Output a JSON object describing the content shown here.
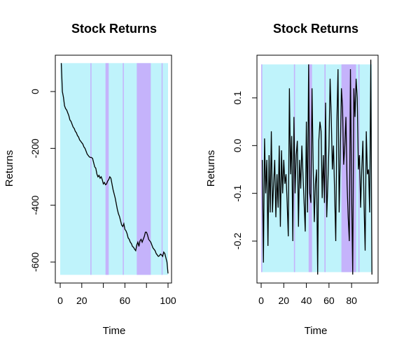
{
  "chart_data": [
    {
      "type": "line",
      "title": "Stock Returns",
      "xlabel": "Time",
      "ylabel": "Returns",
      "xlim": [
        0,
        100
      ],
      "ylim": [
        -650,
        100
      ],
      "xticks": [
        0,
        20,
        40,
        60,
        80,
        100
      ],
      "xtick_labels": [
        "0",
        "20",
        "",
        "60",
        "",
        "100"
      ],
      "yticks": [
        0,
        -200,
        -400,
        -600
      ],
      "ytick_labels": [
        "0",
        "-200",
        "-400",
        "-600"
      ],
      "band_range": [
        -645,
        100
      ],
      "regime_colors": {
        "low": "#bff3fb",
        "high": "#c5b3fb"
      },
      "regime_bands": [
        {
          "x0": 28,
          "x1": 29,
          "regime": "high"
        },
        {
          "x0": 42,
          "x1": 45,
          "regime": "high"
        },
        {
          "x0": 58,
          "x1": 59,
          "regime": "high"
        },
        {
          "x0": 71,
          "x1": 84,
          "regime": "high"
        },
        {
          "x0": 94,
          "x1": 95,
          "regime": "high"
        }
      ],
      "series": [
        {
          "x": [
            1,
            2,
            3,
            4,
            5,
            6,
            7,
            8,
            9,
            10,
            11,
            12,
            13,
            14,
            15,
            16,
            17,
            18,
            19,
            20,
            21,
            22,
            23,
            24,
            25,
            26,
            27,
            28,
            29,
            30,
            31,
            32,
            33,
            34,
            35,
            36,
            37,
            38,
            39,
            40,
            41,
            42,
            43,
            44,
            45,
            46,
            47,
            48,
            49,
            50,
            51,
            52,
            53,
            54,
            55,
            56,
            57,
            58,
            59,
            60,
            61,
            62,
            63,
            64,
            65,
            66,
            67,
            68,
            69,
            70,
            71,
            72,
            73,
            74,
            75,
            76,
            77,
            78,
            79,
            80,
            81,
            82,
            83,
            84,
            85,
            86,
            87,
            88,
            89,
            90,
            91,
            92,
            93,
            94,
            95,
            96,
            97,
            98,
            99,
            100
          ],
          "values": [
            100,
            0,
            -20,
            -50,
            -60,
            -65,
            -75,
            -85,
            -100,
            -105,
            -115,
            -125,
            -130,
            -140,
            -145,
            -155,
            -160,
            -170,
            -175,
            -180,
            -185,
            -195,
            -200,
            -210,
            -220,
            -225,
            -230,
            -232,
            -232,
            -235,
            -250,
            -265,
            -270,
            -290,
            -300,
            -295,
            -305,
            -300,
            -310,
            -325,
            -320,
            -328,
            -325,
            -315,
            -310,
            -300,
            -305,
            -325,
            -345,
            -360,
            -375,
            -395,
            -415,
            -430,
            -440,
            -455,
            -470,
            -475,
            -465,
            -485,
            -490,
            -500,
            -515,
            -520,
            -530,
            -535,
            -545,
            -548,
            -555,
            -560,
            -540,
            -530,
            -545,
            -525,
            -520,
            -530,
            -520,
            -510,
            -495,
            -495,
            -505,
            -520,
            -525,
            -530,
            -540,
            -550,
            -555,
            -560,
            -570,
            -575,
            -580,
            -578,
            -572,
            -575,
            -580,
            -565,
            -570,
            -585,
            -600,
            -640
          ]
        }
      ]
    },
    {
      "type": "line",
      "title": "Stock Returns",
      "xlabel": "Time",
      "ylabel": "Returns",
      "xlim": [
        0,
        98
      ],
      "ylim": [
        -0.28,
        0.18
      ],
      "xticks": [
        0,
        20,
        40,
        60,
        80
      ],
      "xtick_labels": [
        "0",
        "20",
        "40",
        "60",
        "80"
      ],
      "yticks": [
        0.1,
        0.0,
        -0.1,
        -0.2
      ],
      "ytick_labels": [
        "0.1",
        "0.0",
        "-0.1",
        "-0.2"
      ],
      "band_range": [
        -0.265,
        0.17
      ],
      "regime_colors": {
        "low": "#bff3fb",
        "high": "#c5b3fb"
      },
      "regime_bands": [
        {
          "x0": 0,
          "x1": 1,
          "regime": "high"
        },
        {
          "x0": 29,
          "x1": 30,
          "regime": "high"
        },
        {
          "x0": 42,
          "x1": 45,
          "regime": "high"
        },
        {
          "x0": 56,
          "x1": 57,
          "regime": "high"
        },
        {
          "x0": 71,
          "x1": 84,
          "regime": "high"
        },
        {
          "x0": 86,
          "x1": 87,
          "regime": "high"
        }
      ],
      "series": [
        {
          "x": [
            1,
            2,
            3,
            4,
            5,
            6,
            7,
            8,
            9,
            10,
            11,
            12,
            13,
            14,
            15,
            16,
            17,
            18,
            19,
            20,
            21,
            22,
            23,
            24,
            25,
            26,
            27,
            28,
            29,
            30,
            31,
            32,
            33,
            34,
            35,
            36,
            37,
            38,
            39,
            40,
            41,
            42,
            43,
            44,
            45,
            46,
            47,
            48,
            49,
            50,
            51,
            52,
            53,
            54,
            55,
            56,
            57,
            58,
            59,
            60,
            61,
            62,
            63,
            64,
            65,
            66,
            67,
            68,
            69,
            70,
            71,
            72,
            73,
            74,
            75,
            76,
            77,
            78,
            79,
            80,
            81,
            82,
            83,
            84,
            85,
            86,
            87,
            88,
            89,
            90,
            91,
            92,
            93,
            94,
            95,
            96,
            97,
            98
          ],
          "values": [
            -0.03,
            -0.245,
            0.015,
            -0.1,
            -0.03,
            -0.21,
            -0.02,
            -0.14,
            0.03,
            -0.14,
            -0.08,
            -0.03,
            -0.15,
            -0.06,
            -0.13,
            0.0,
            -0.17,
            -0.01,
            -0.1,
            -0.03,
            -0.08,
            -0.06,
            -0.12,
            -0.19,
            0.12,
            -0.06,
            0.02,
            -0.2,
            0.06,
            -0.1,
            -0.02,
            0.01,
            -0.17,
            -0.03,
            -0.09,
            0.0,
            -0.06,
            -0.12,
            -0.18,
            0.05,
            -0.14,
            0.17,
            -0.1,
            -0.12,
            0.12,
            -0.04,
            -0.16,
            -0.08,
            -0.05,
            -0.27,
            0.01,
            0.05,
            0.03,
            -0.11,
            -0.02,
            -0.12,
            0.09,
            -0.15,
            -0.08,
            0.0,
            0.14,
            0.06,
            -0.05,
            0.0,
            -0.1,
            -0.2,
            0.05,
            0.16,
            -0.14,
            -0.02,
            0.12,
            0.08,
            -0.04,
            0.0,
            0.06,
            -0.08,
            -0.15,
            -0.2,
            0.16,
            -0.1,
            -0.27,
            0.12,
            0.06,
            0.14,
            0.1,
            -0.05,
            -0.02,
            -0.13,
            -0.05,
            0.01,
            -0.12,
            -0.22,
            0.03,
            -0.06,
            -0.05,
            -0.14,
            0.18,
            -0.27
          ]
        }
      ]
    }
  ]
}
